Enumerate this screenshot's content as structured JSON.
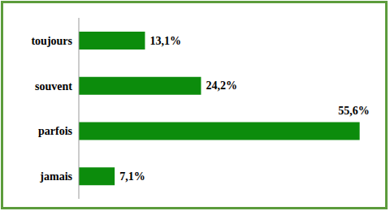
{
  "chart_data": {
    "type": "bar",
    "orientation": "horizontal",
    "categories": [
      "toujours",
      "souvent",
      "parfois",
      "jamais"
    ],
    "values": [
      13.1,
      24.2,
      55.6,
      7.1
    ],
    "value_labels": [
      "13,1%",
      "24,2%",
      "55,6%",
      "7,1%"
    ],
    "color": "#0c8c0c",
    "data_labels": true,
    "tick_labels": "y",
    "grid": false
  }
}
